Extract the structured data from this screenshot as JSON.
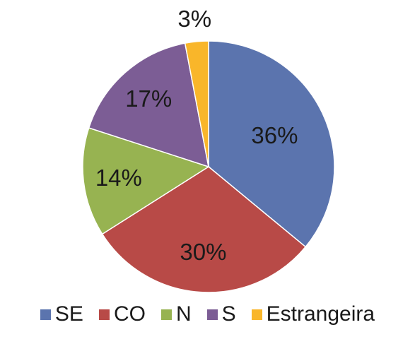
{
  "chart_data": {
    "type": "pie",
    "title": "",
    "start_angle_deg": 0,
    "direction": "clockwise",
    "legend_position": "bottom",
    "slices": [
      {
        "label": "SE",
        "value": 36,
        "display": "36%",
        "color": "#5B74AE"
      },
      {
        "label": "CO",
        "value": 30,
        "display": "30%",
        "color": "#B84A47"
      },
      {
        "label": "N",
        "value": 14,
        "display": "14%",
        "color": "#97B351"
      },
      {
        "label": "S",
        "value": 17,
        "display": "17%",
        "color": "#7C5D95"
      },
      {
        "label": "Estrangeira",
        "value": 3,
        "display": "3%",
        "color": "#F9B62A"
      }
    ]
  }
}
